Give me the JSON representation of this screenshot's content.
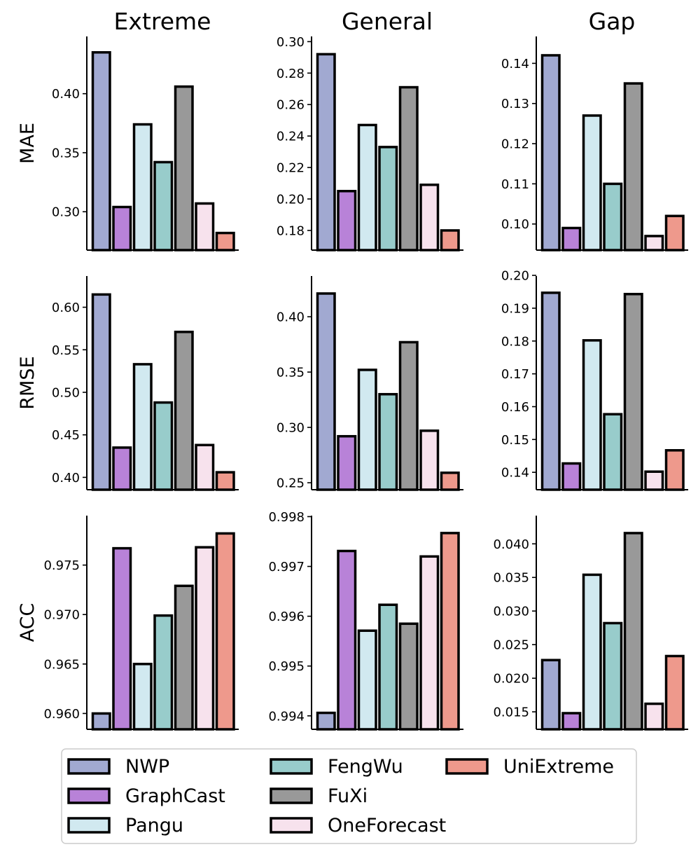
{
  "chart_data": {
    "type": "bar",
    "grid": false,
    "legend_position": "bottom",
    "columns": [
      "Extreme",
      "General",
      "Gap"
    ],
    "rows": [
      "MAE",
      "RMSE",
      "ACC"
    ],
    "categories": [
      "NWP",
      "GraphCast",
      "Pangu",
      "FengWu",
      "FuXi",
      "OneForecast",
      "UniExtreme"
    ],
    "colors": {
      "NWP": "#a1a9d1",
      "GraphCast": "#b882d8",
      "Pangu": "#d1e9f0",
      "FengWu": "#98cccb",
      "FuXi": "#999999",
      "OneForecast": "#f7e2ed",
      "UniExtreme": "#ee998c"
    },
    "legend": {
      "entries": [
        "NWP",
        "GraphCast",
        "Pangu",
        "FengWu",
        "FuXi",
        "OneForecast",
        "UniExtreme"
      ],
      "columns": 3
    },
    "panels": [
      {
        "row": "MAE",
        "column": "Extreme",
        "ylim": [
          0.2675,
          0.4485
        ],
        "ticks": [
          "0.30",
          "0.35",
          "0.40"
        ],
        "values": [
          0.435,
          0.304,
          0.374,
          0.342,
          0.406,
          0.307,
          0.282
        ]
      },
      {
        "row": "MAE",
        "column": "General",
        "ylim": [
          0.1675,
          0.3033
        ],
        "ticks": [
          "0.18",
          "0.20",
          "0.22",
          "0.24",
          "0.26",
          "0.28",
          "0.30"
        ],
        "values": [
          0.292,
          0.205,
          0.247,
          0.233,
          0.271,
          0.209,
          0.18
        ]
      },
      {
        "row": "MAE",
        "column": "Gap",
        "ylim": [
          0.0935,
          0.1467
        ],
        "ticks": [
          "0.10",
          "0.11",
          "0.12",
          "0.13",
          "0.14"
        ],
        "values": [
          0.142,
          0.099,
          0.127,
          0.11,
          0.135,
          0.097,
          0.102
        ]
      },
      {
        "row": "RMSE",
        "column": "Extreme",
        "ylim": [
          0.3855,
          0.6367
        ],
        "ticks": [
          "0.40",
          "0.45",
          "0.50",
          "0.55",
          "0.60"
        ],
        "values": [
          0.615,
          0.435,
          0.533,
          0.488,
          0.571,
          0.438,
          0.406
        ]
      },
      {
        "row": "RMSE",
        "column": "General",
        "ylim": [
          0.2437,
          0.4368
        ],
        "ticks": [
          "0.25",
          "0.30",
          "0.35",
          "0.40"
        ],
        "values": [
          0.421,
          0.292,
          0.352,
          0.33,
          0.377,
          0.297,
          0.259
        ]
      },
      {
        "row": "RMSE",
        "column": "Gap",
        "ylim": [
          0.1347,
          0.1998
        ],
        "ticks": [
          "0.14",
          "0.15",
          "0.16",
          "0.17",
          "0.18",
          "0.19",
          "0.20"
        ],
        "values": [
          0.1947,
          0.1427,
          0.1802,
          0.1577,
          0.1943,
          0.1402,
          0.1467
        ]
      },
      {
        "row": "ACC",
        "column": "Extreme",
        "ylim": [
          0.9584,
          0.98
        ],
        "ticks": [
          "0.960",
          "0.965",
          "0.970",
          "0.975"
        ],
        "values": [
          0.96,
          0.9767,
          0.965,
          0.9699,
          0.9729,
          0.9768,
          0.9782
        ]
      },
      {
        "row": "ACC",
        "column": "General",
        "ylim": [
          0.99373,
          0.99802
        ],
        "ticks": [
          "0.994",
          "0.995",
          "0.996",
          "0.997",
          "0.998"
        ],
        "values": [
          0.99406,
          0.99731,
          0.99571,
          0.99623,
          0.99585,
          0.9972,
          0.99767
        ]
      },
      {
        "row": "ACC",
        "column": "Gap",
        "ylim": [
          0.0124,
          0.0442
        ],
        "ticks": [
          "0.015",
          "0.020",
          "0.025",
          "0.030",
          "0.035",
          "0.040"
        ],
        "values": [
          0.0227,
          0.0148,
          0.0354,
          0.0282,
          0.0416,
          0.0162,
          0.0233
        ]
      }
    ]
  }
}
